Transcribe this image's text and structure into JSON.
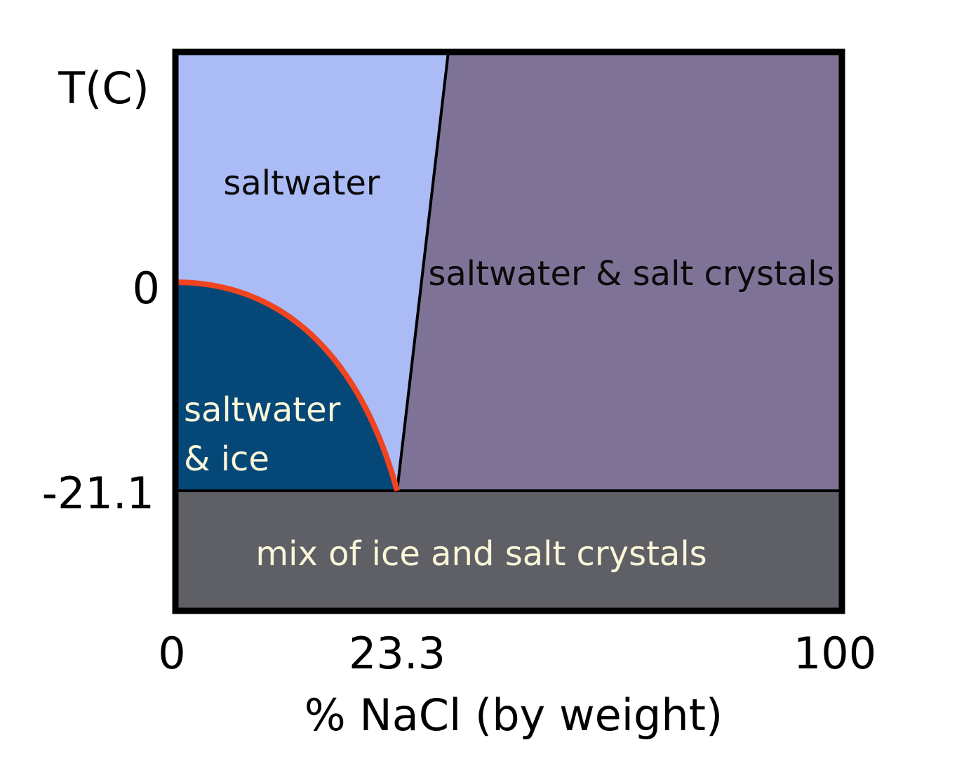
{
  "diagram": {
    "y_axis_label": "T(C)",
    "x_axis_label": "% NaCl (by weight)",
    "x_ticks": [
      "0",
      "23.3",
      "100"
    ],
    "y_ticks": [
      "0",
      "-21.1"
    ],
    "eutectic": {
      "composition": 23.3,
      "temperature": -21.1
    },
    "regions": {
      "saltwater": "saltwater",
      "saltwater_salt": "saltwater & salt crystals",
      "saltwater_ice_line1": "saltwater",
      "saltwater_ice_line2": "& ice",
      "ice_salt_mix": "mix of ice and salt crystals"
    },
    "colors": {
      "saltwater": "#abbbf5",
      "saltwater_salt": "#7e7397",
      "saltwater_ice": "#054878",
      "ice_salt_mix": "#5f5f66",
      "liquidus_line": "#f0431f",
      "frame": "#000000",
      "light_text": "#fbf6d8"
    }
  }
}
